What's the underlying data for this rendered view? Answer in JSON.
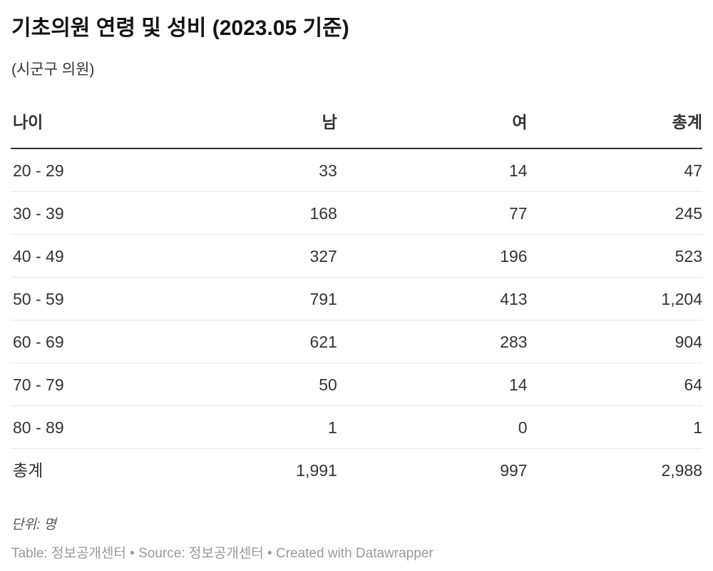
{
  "header": {
    "title": "기초의원 연령 및 성비 (2023.05 기준)",
    "subtitle": "(시군구 의원)"
  },
  "chart_data": {
    "type": "table",
    "title": "기초의원 연령 및 성비 (2023.05 기준)",
    "subtitle": "(시군구 의원)",
    "columns": [
      "나이",
      "남",
      "여",
      "총계"
    ],
    "rows": [
      [
        "20 - 29",
        "33",
        "14",
        "47"
      ],
      [
        "30 - 39",
        "168",
        "77",
        "245"
      ],
      [
        "40 - 49",
        "327",
        "196",
        "523"
      ],
      [
        "50 - 59",
        "791",
        "413",
        "1,204"
      ],
      [
        "60 - 69",
        "621",
        "283",
        "904"
      ],
      [
        "70 - 79",
        "50",
        "14",
        "64"
      ],
      [
        "80 - 89",
        "1",
        "0",
        "1"
      ],
      [
        "총계",
        "1,991",
        "997",
        "2,988"
      ]
    ]
  },
  "table": {
    "columns": [
      "나이",
      "남",
      "여",
      "총계"
    ],
    "rows": [
      [
        "20 - 29",
        "33",
        "14",
        "47"
      ],
      [
        "30 - 39",
        "168",
        "77",
        "245"
      ],
      [
        "40 - 49",
        "327",
        "196",
        "523"
      ],
      [
        "50 - 59",
        "791",
        "413",
        "1,204"
      ],
      [
        "60 - 69",
        "621",
        "283",
        "904"
      ],
      [
        "70 - 79",
        "50",
        "14",
        "64"
      ],
      [
        "80 - 89",
        "1",
        "0",
        "1"
      ],
      [
        "총계",
        "1,991",
        "997",
        "2,988"
      ]
    ]
  },
  "footer": {
    "unit_note": "단위: 명",
    "attribution": {
      "table_label": "Table: ",
      "table_source": "정보공개센터",
      "dot1": " • ",
      "source_label": "Source: ",
      "source_name": "정보공개센터",
      "dot2": " • ",
      "created_label": "Created with ",
      "created_tool": "Datawrapper"
    }
  },
  "colors": {
    "background": "#ffffff",
    "title_text": "#141414",
    "body_text": "#333333",
    "header_rule": "#333333",
    "row_divider": "#e8e8e8",
    "note_text": "#555555",
    "attribution_text": "#999999"
  }
}
